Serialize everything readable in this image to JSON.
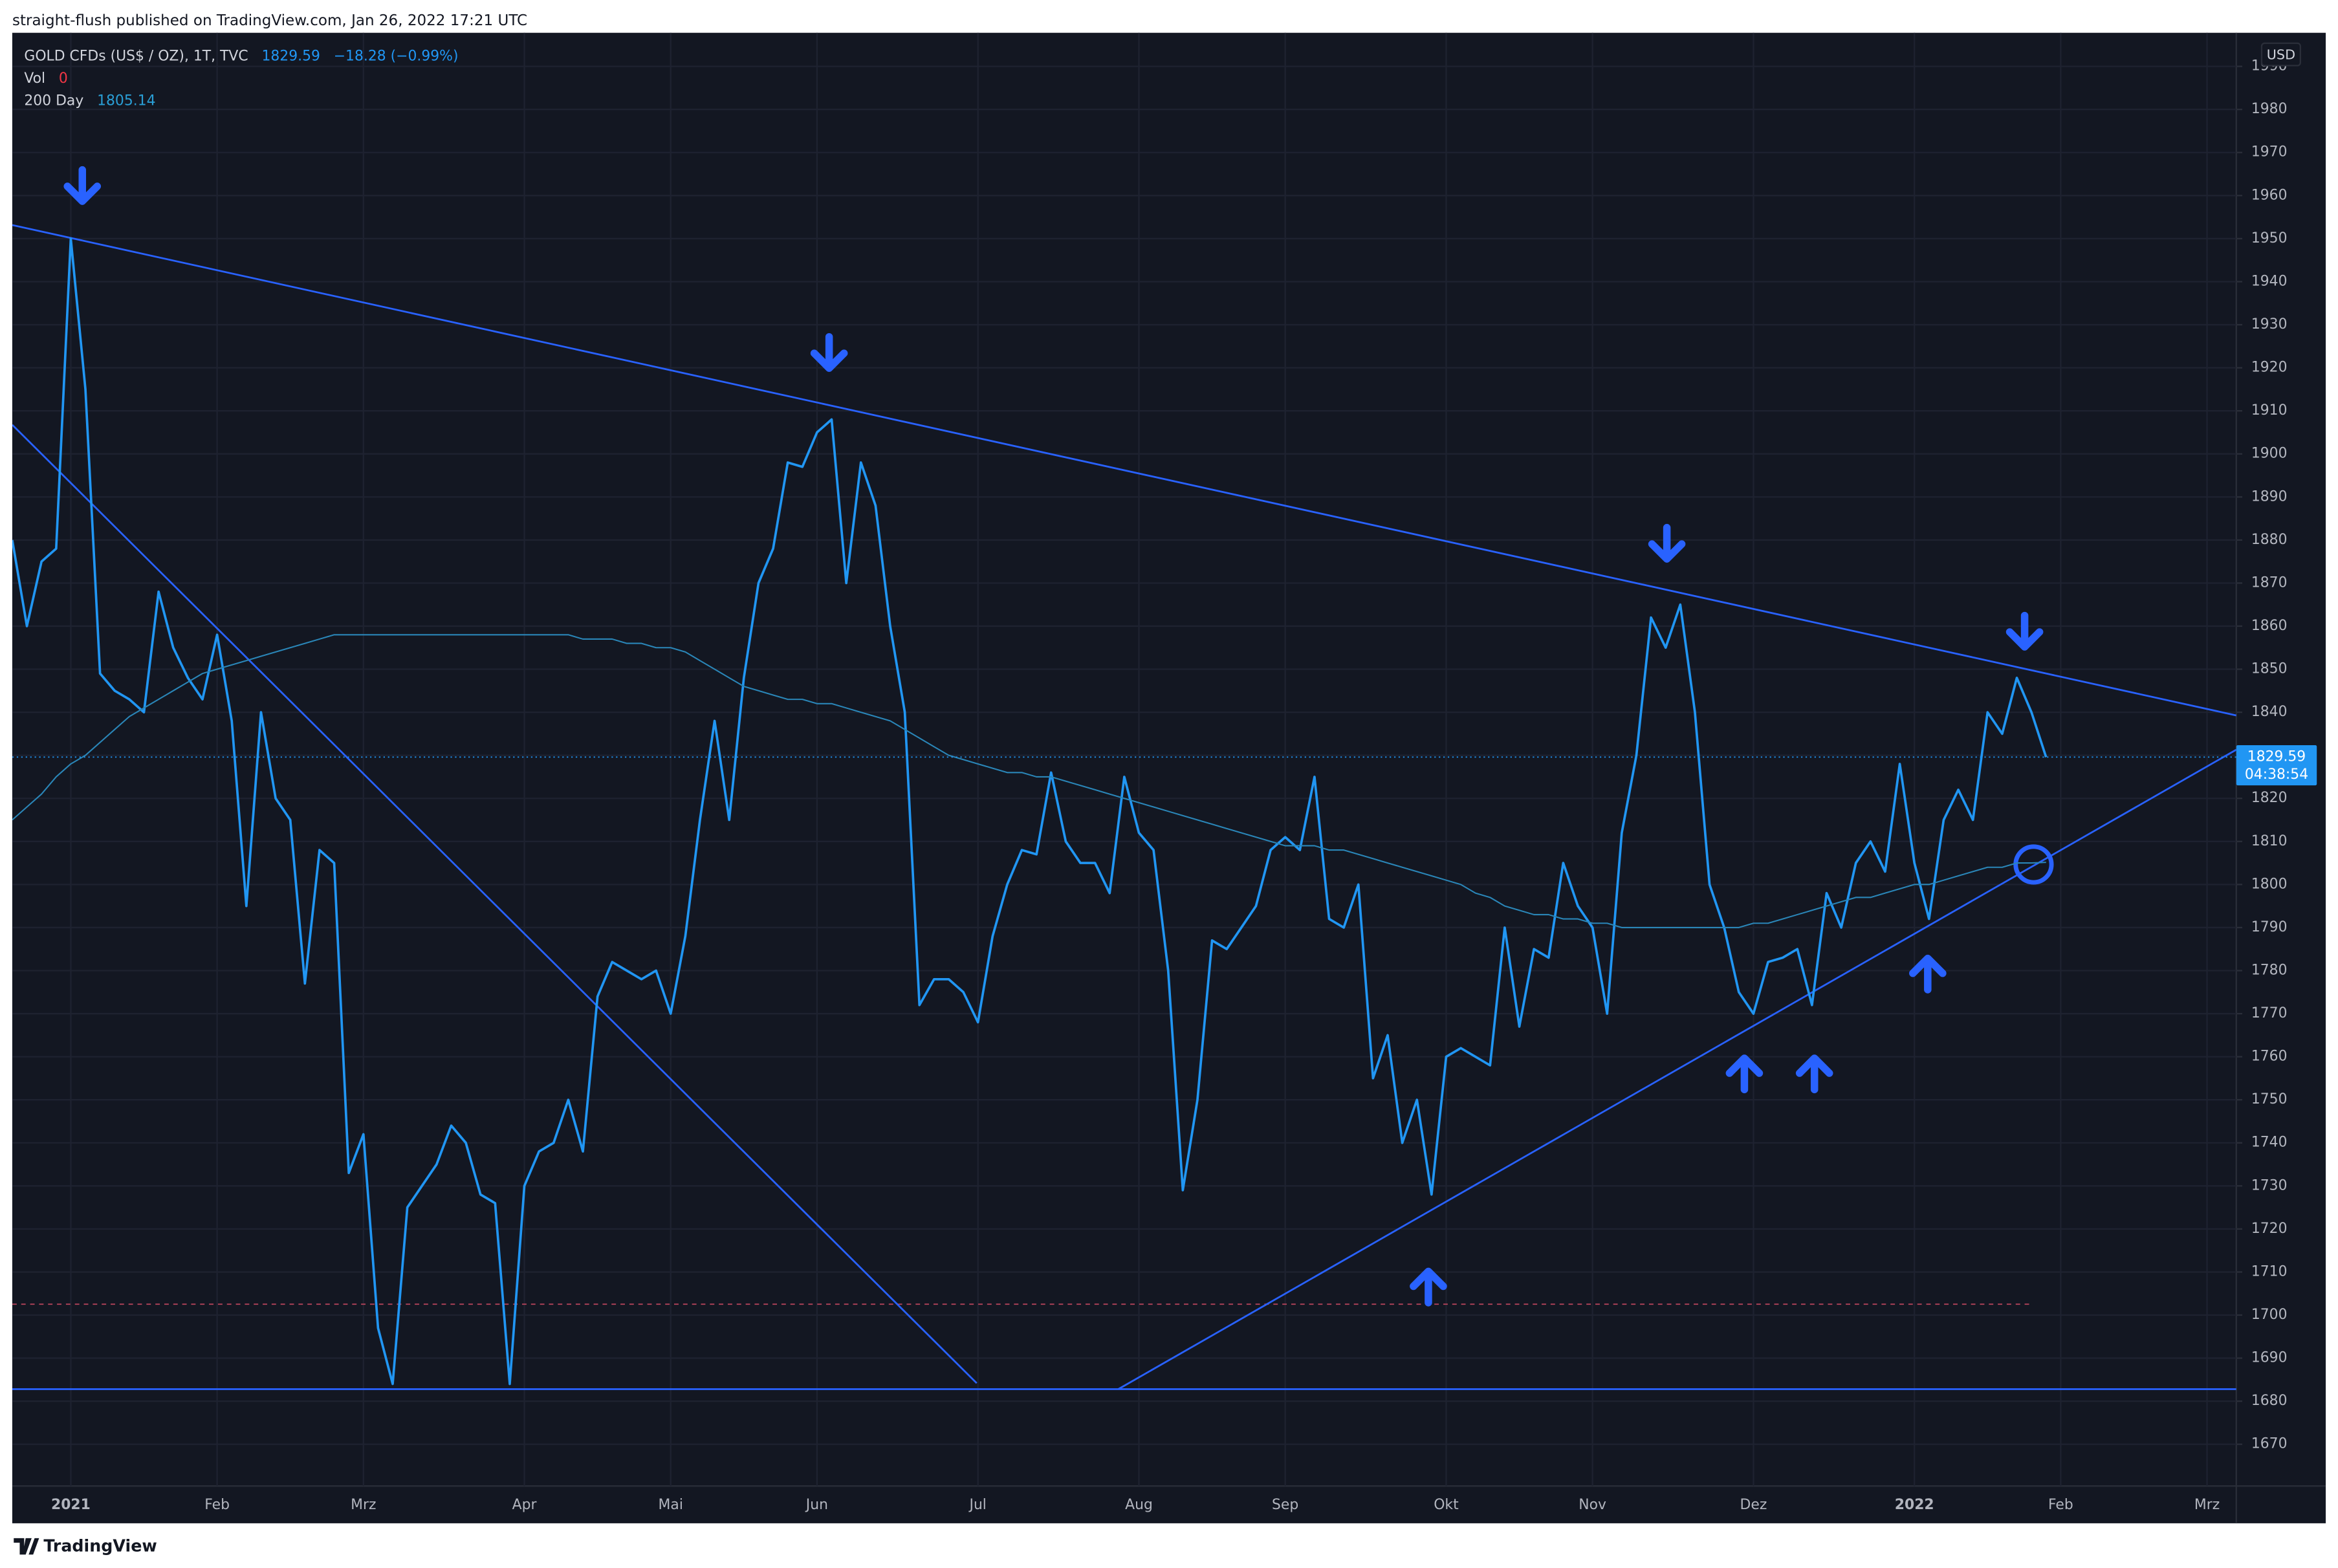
{
  "header": {
    "published": "straight-flush published on TradingView.com, Jan 26, 2022 17:21 UTC"
  },
  "footer_brand": "TradingView",
  "chart_data": {
    "type": "line",
    "change_label": "−18.28 (−0.99%)",
    "volume_label": "Vol",
    "volume": 0,
    "currency": "USD",
    "countdown": "04:38:54",
    "grid": true,
    "categories": [
      null,
      null,
      null,
      null,
      "2021",
      null,
      null,
      null,
      null,
      null,
      null,
      null,
      null,
      null,
      "Feb",
      null,
      null,
      null,
      null,
      null,
      null,
      null,
      null,
      null,
      "Mrz",
      null,
      null,
      null,
      null,
      null,
      null,
      null,
      null,
      null,
      null,
      "Apr",
      null,
      null,
      null,
      null,
      null,
      null,
      null,
      null,
      null,
      "Mai",
      null,
      null,
      null,
      null,
      null,
      null,
      null,
      null,
      null,
      "Jun",
      null,
      null,
      null,
      null,
      null,
      null,
      null,
      null,
      null,
      null,
      "Jul",
      null,
      null,
      null,
      null,
      null,
      null,
      null,
      null,
      null,
      null,
      "Aug",
      null,
      null,
      null,
      null,
      null,
      null,
      null,
      null,
      null,
      "Sep",
      null,
      null,
      null,
      null,
      null,
      null,
      null,
      null,
      null,
      null,
      "Okt",
      null,
      null,
      null,
      null,
      null,
      null,
      null,
      null,
      null,
      "Nov",
      null,
      null,
      null,
      null,
      null,
      null,
      null,
      null,
      null,
      null,
      "Dez",
      null,
      null,
      null,
      null,
      null,
      null,
      null,
      null,
      null,
      null,
      "2022",
      null,
      null,
      null,
      null,
      null,
      null,
      null,
      null,
      null,
      "Feb",
      null,
      null,
      null,
      null,
      null,
      null,
      null,
      null,
      null,
      "Mrz",
      null,
      null
    ],
    "series": [
      {
        "name": "GOLD CFDs (US$ / OZ), 1T, TVC",
        "color": "#2196f3",
        "values": [
          1880,
          1860,
          1875,
          1878,
          1950,
          1915,
          1849,
          1845,
          1843,
          1840,
          1868,
          1855,
          1848,
          1843,
          1858,
          1838,
          1795,
          1840,
          1820,
          1815,
          1777,
          1808,
          1805,
          1733,
          1742,
          1697,
          1684,
          1725,
          1730,
          1735,
          1744,
          1740,
          1728,
          1726,
          1684,
          1730,
          1738,
          1740,
          1750,
          1738,
          1774,
          1782,
          1780,
          1778,
          1780,
          1770,
          1788,
          1815,
          1838,
          1815,
          1848,
          1870,
          1878,
          1898,
          1897,
          1905,
          1908,
          1870,
          1898,
          1888,
          1860,
          1840,
          1772,
          1778,
          1778,
          1775,
          1768,
          1788,
          1800,
          1808,
          1807,
          1826,
          1810,
          1805,
          1805,
          1798,
          1825,
          1812,
          1808,
          1780,
          1729,
          1750,
          1787,
          1785,
          1790,
          1795,
          1808,
          1811,
          1808,
          1825,
          1792,
          1790,
          1800,
          1755,
          1765,
          1740,
          1750,
          1728,
          1760,
          1762,
          1760,
          1758,
          1790,
          1767,
          1785,
          1783,
          1805,
          1795,
          1790,
          1770,
          1812,
          1830,
          1862,
          1855,
          1865,
          1840,
          1800,
          1790,
          1775,
          1770,
          1782,
          1783,
          1785,
          1772,
          1798,
          1790,
          1805,
          1810,
          1803,
          1828,
          1805,
          1792,
          1815,
          1822,
          1815,
          1840,
          1835,
          1848,
          1840,
          1829.59,
          null,
          null,
          null,
          null,
          null,
          null,
          null,
          null,
          null,
          null,
          null,
          null,
          null
        ]
      },
      {
        "name": "200 Day",
        "color": "#2a86b8",
        "values": [
          1815,
          1818,
          1821,
          1825,
          1828,
          1830,
          1833,
          1836,
          1839,
          1841,
          1843,
          1845,
          1847,
          1849,
          1850,
          1851,
          1852,
          1853,
          1854,
          1855,
          1856,
          1857,
          1858,
          1858,
          1858,
          1858,
          1858,
          1858,
          1858,
          1858,
          1858,
          1858,
          1858,
          1858,
          1858,
          1858,
          1858,
          1858,
          1858,
          1857,
          1857,
          1857,
          1856,
          1856,
          1855,
          1855,
          1854,
          1852,
          1850,
          1848,
          1846,
          1845,
          1844,
          1843,
          1843,
          1842,
          1842,
          1841,
          1840,
          1839,
          1838,
          1836,
          1834,
          1832,
          1830,
          1829,
          1828,
          1827,
          1826,
          1826,
          1825,
          1825,
          1824,
          1823,
          1822,
          1821,
          1820,
          1819,
          1818,
          1817,
          1816,
          1815,
          1814,
          1813,
          1812,
          1811,
          1810,
          1809,
          1809,
          1809,
          1808,
          1808,
          1807,
          1806,
          1805,
          1804,
          1803,
          1802,
          1801,
          1800,
          1798,
          1797,
          1795,
          1794,
          1793,
          1793,
          1792,
          1792,
          1791,
          1791,
          1790,
          1790,
          1790,
          1790,
          1790,
          1790,
          1790,
          1790,
          1790,
          1791,
          1791,
          1792,
          1793,
          1794,
          1795,
          1796,
          1797,
          1797,
          1798,
          1799,
          1800,
          1800,
          1801,
          1802,
          1803,
          1804,
          1804,
          1805,
          1805,
          1805.14,
          null,
          null,
          null,
          null,
          null,
          null,
          null,
          null,
          null,
          null,
          null,
          null,
          null
        ]
      }
    ],
    "ylim": [
      1660.3,
      1997.8
    ],
    "yticks": [
      1670,
      1680,
      1690,
      1700,
      1710,
      1720,
      1730,
      1740,
      1750,
      1760,
      1770,
      1780,
      1790,
      1800,
      1810,
      1820,
      1830,
      1840,
      1850,
      1860,
      1870,
      1880,
      1890,
      1900,
      1910,
      1920,
      1930,
      1940,
      1950,
      1960,
      1970,
      1980,
      1990
    ]
  }
}
